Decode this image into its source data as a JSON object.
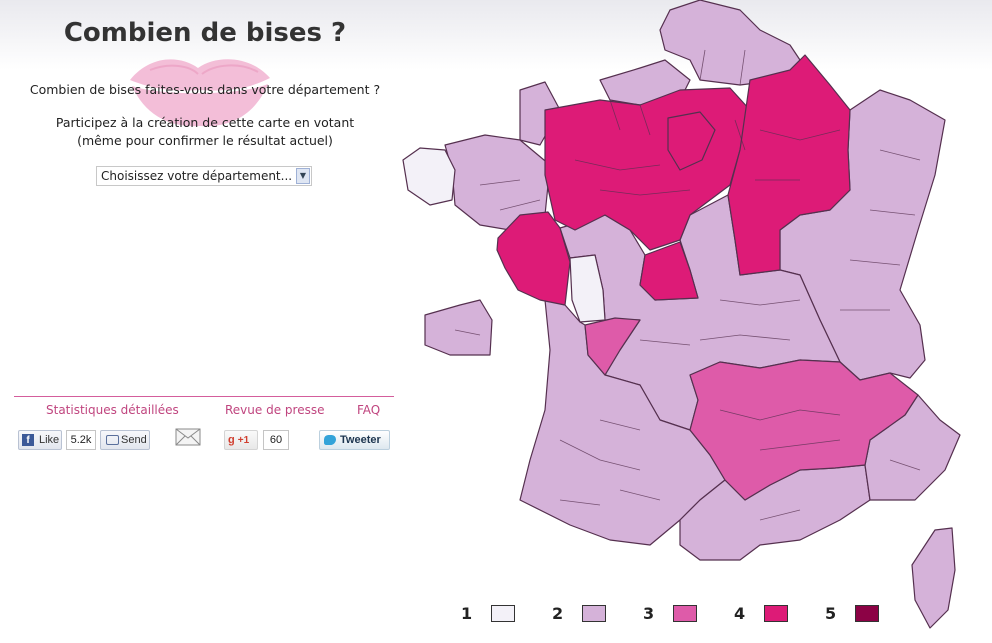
{
  "header": {
    "title": "Combien de bises ?"
  },
  "intro": {
    "question": "Combien de bises faites-vous dans votre département ?",
    "participate": "Participez à la création de cette carte en votant",
    "confirm": "(même pour confirmer le résultat actuel)"
  },
  "department_select": {
    "selected": "Choisissez votre département..."
  },
  "footer": {
    "links": [
      "Statistiques détaillées",
      "Revue de presse",
      "FAQ"
    ]
  },
  "social": {
    "facebook_like_label": "Like",
    "facebook_like_count": "5.2k",
    "facebook_send_label": "Send",
    "gplus_label": "+1",
    "gplus_count": "60",
    "tweet_label": "Tweeter"
  },
  "colors": {
    "level_1": "#f3f1f8",
    "level_2": "#d5b2d9",
    "level_3": "#de5ba9",
    "level_4": "#dd1b77",
    "level_5": "#8c0245",
    "border": "#55304f",
    "accent": "#c0457f"
  },
  "legend": [
    {
      "label": "1",
      "color": "#f3f1f8"
    },
    {
      "label": "2",
      "color": "#d5b2d9"
    },
    {
      "label": "3",
      "color": "#de5ba9"
    },
    {
      "label": "4",
      "color": "#dd1b77"
    },
    {
      "label": "5",
      "color": "#8c0245"
    }
  ],
  "map_regions": [
    {
      "name": "brittany-west",
      "level": 1
    },
    {
      "name": "brittany-east",
      "level": 2
    },
    {
      "name": "deux-sevres",
      "level": 1
    },
    {
      "name": "northwest-paris-basin",
      "level": 4
    },
    {
      "name": "ile-de-france-east",
      "level": 4
    },
    {
      "name": "grand-est-west",
      "level": 4
    },
    {
      "name": "vendee-loire-atlantique",
      "level": 4
    },
    {
      "name": "allier-cher",
      "level": 4
    },
    {
      "name": "charente",
      "level": 3
    },
    {
      "name": "massif-central-rhone",
      "level": 3
    },
    {
      "name": "north",
      "level": 2
    },
    {
      "name": "east",
      "level": 2
    },
    {
      "name": "west-central",
      "level": 2
    },
    {
      "name": "southwest",
      "level": 2
    },
    {
      "name": "south",
      "level": 2
    },
    {
      "name": "southeast",
      "level": 2
    },
    {
      "name": "corsica",
      "level": 2
    }
  ]
}
